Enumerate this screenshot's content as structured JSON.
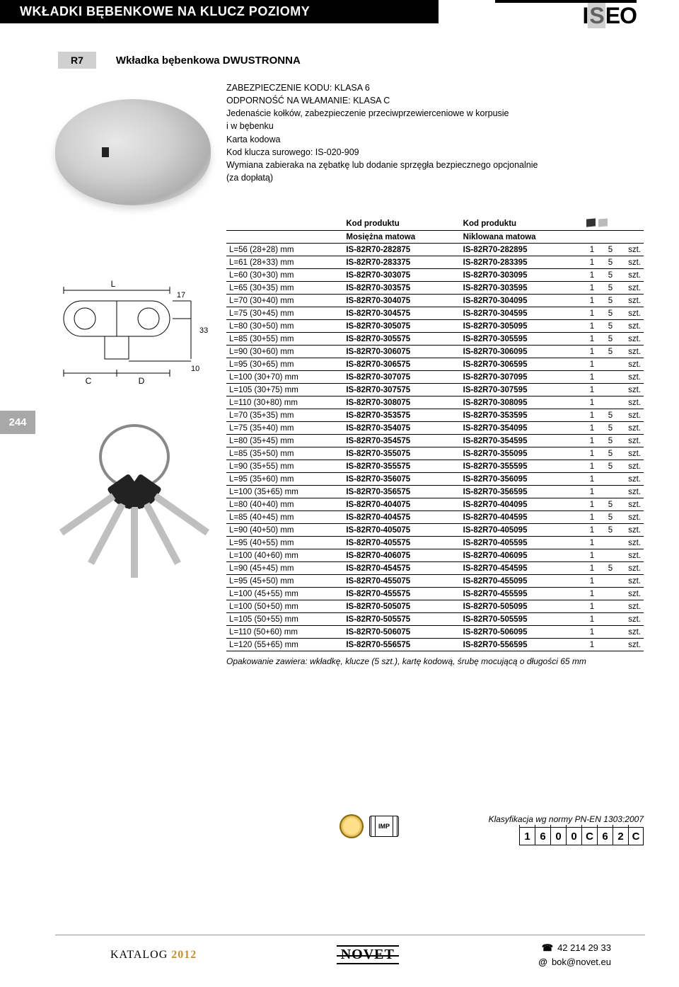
{
  "header": {
    "title": "WKŁADKI BĘBENKOWE NA KLUCZ POZIOMY",
    "brand_logo": "ISEO"
  },
  "subheader": {
    "badge": "R7",
    "title": "Wkładka bębenkowa DWUSTRONNA"
  },
  "description": [
    "ZABEZPIECZENIE KODU: KLASA 6",
    "ODPORNOŚĆ NA WŁAMANIE: KLASA C",
    "Jedenaście kołków, zabezpieczenie przeciwprzewierceniowe w korpusie",
    "i w bębenku",
    "Karta kodowa",
    "Kod klucza surowego: IS-020-909",
    "Wymiana zabieraka na zębatkę lub dodanie sprzęgła bezpiecznego opcjonalnie",
    "(za dopłatą)"
  ],
  "table": {
    "header1": {
      "col2": "Kod produktu",
      "col3": "Kod produktu"
    },
    "header2": {
      "col2": "Mosiężna matowa",
      "col3": "Niklowana matowa"
    },
    "unit": "szt.",
    "rows": [
      {
        "dim": "L=56 (28+28) mm",
        "c1": "IS-82R70-282875",
        "c2": "IS-82R70-282895",
        "q1": "1",
        "q2": "5"
      },
      {
        "dim": "L=61 (28+33) mm",
        "c1": "IS-82R70-283375",
        "c2": "IS-82R70-283395",
        "q1": "1",
        "q2": "5"
      },
      {
        "dim": "L=60 (30+30) mm",
        "c1": "IS-82R70-303075",
        "c2": "IS-82R70-303095",
        "q1": "1",
        "q2": "5"
      },
      {
        "dim": "L=65 (30+35) mm",
        "c1": "IS-82R70-303575",
        "c2": "IS-82R70-303595",
        "q1": "1",
        "q2": "5"
      },
      {
        "dim": "L=70 (30+40) mm",
        "c1": "IS-82R70-304075",
        "c2": "IS-82R70-304095",
        "q1": "1",
        "q2": "5"
      },
      {
        "dim": "L=75 (30+45) mm",
        "c1": "IS-82R70-304575",
        "c2": "IS-82R70-304595",
        "q1": "1",
        "q2": "5"
      },
      {
        "dim": "L=80 (30+50) mm",
        "c1": "IS-82R70-305075",
        "c2": "IS-82R70-305095",
        "q1": "1",
        "q2": "5"
      },
      {
        "dim": "L=85 (30+55) mm",
        "c1": "IS-82R70-305575",
        "c2": "IS-82R70-305595",
        "q1": "1",
        "q2": "5"
      },
      {
        "dim": "L=90 (30+60) mm",
        "c1": "IS-82R70-306075",
        "c2": "IS-82R70-306095",
        "q1": "1",
        "q2": "5"
      },
      {
        "dim": "L=95 (30+65) mm",
        "c1": "IS-82R70-306575",
        "c2": "IS-82R70-306595",
        "q1": "1",
        "q2": ""
      },
      {
        "dim": "L=100 (30+70) mm",
        "c1": "IS-82R70-307075",
        "c2": "IS-82R70-307095",
        "q1": "1",
        "q2": ""
      },
      {
        "dim": "L=105 (30+75) mm",
        "c1": "IS-82R70-307575",
        "c2": "IS-82R70-307595",
        "q1": "1",
        "q2": ""
      },
      {
        "dim": "L=110 (30+80) mm",
        "c1": "IS-82R70-308075",
        "c2": "IS-82R70-308095",
        "q1": "1",
        "q2": ""
      },
      {
        "dim": "L=70 (35+35) mm",
        "c1": "IS-82R70-353575",
        "c2": "IS-82R70-353595",
        "q1": "1",
        "q2": "5"
      },
      {
        "dim": "L=75 (35+40) mm",
        "c1": "IS-82R70-354075",
        "c2": "IS-82R70-354095",
        "q1": "1",
        "q2": "5"
      },
      {
        "dim": "L=80 (35+45) mm",
        "c1": "IS-82R70-354575",
        "c2": "IS-82R70-354595",
        "q1": "1",
        "q2": "5"
      },
      {
        "dim": "L=85 (35+50) mm",
        "c1": "IS-82R70-355075",
        "c2": "IS-82R70-355095",
        "q1": "1",
        "q2": "5"
      },
      {
        "dim": "L=90 (35+55) mm",
        "c1": "IS-82R70-355575",
        "c2": "IS-82R70-355595",
        "q1": "1",
        "q2": "5"
      },
      {
        "dim": "L=95 (35+60) mm",
        "c1": "IS-82R70-356075",
        "c2": "IS-82R70-356095",
        "q1": "1",
        "q2": ""
      },
      {
        "dim": "L=100 (35+65) mm",
        "c1": "IS-82R70-356575",
        "c2": "IS-82R70-356595",
        "q1": "1",
        "q2": ""
      },
      {
        "dim": "L=80 (40+40) mm",
        "c1": "IS-82R70-404075",
        "c2": "IS-82R70-404095",
        "q1": "1",
        "q2": "5"
      },
      {
        "dim": "L=85 (40+45) mm",
        "c1": "IS-82R70-404575",
        "c2": "IS-82R70-404595",
        "q1": "1",
        "q2": "5"
      },
      {
        "dim": "L=90 (40+50) mm",
        "c1": "IS-82R70-405075",
        "c2": "IS-82R70-405095",
        "q1": "1",
        "q2": "5"
      },
      {
        "dim": "L=95 (40+55) mm",
        "c1": "IS-82R70-405575",
        "c2": "IS-82R70-405595",
        "q1": "1",
        "q2": ""
      },
      {
        "dim": "L=100 (40+60) mm",
        "c1": "IS-82R70-406075",
        "c2": "IS-82R70-406095",
        "q1": "1",
        "q2": ""
      },
      {
        "dim": "L=90 (45+45) mm",
        "c1": "IS-82R70-454575",
        "c2": "IS-82R70-454595",
        "q1": "1",
        "q2": "5"
      },
      {
        "dim": "L=95 (45+50) mm",
        "c1": "IS-82R70-455075",
        "c2": "IS-82R70-455095",
        "q1": "1",
        "q2": ""
      },
      {
        "dim": "L=100 (45+55) mm",
        "c1": "IS-82R70-455575",
        "c2": "IS-82R70-455595",
        "q1": "1",
        "q2": ""
      },
      {
        "dim": "L=100 (50+50) mm",
        "c1": "IS-82R70-505075",
        "c2": "IS-82R70-505095",
        "q1": "1",
        "q2": ""
      },
      {
        "dim": "L=105 (50+55) mm",
        "c1": "IS-82R70-505575",
        "c2": "IS-82R70-505595",
        "q1": "1",
        "q2": ""
      },
      {
        "dim": "L=110 (50+60) mm",
        "c1": "IS-82R70-506075",
        "c2": "IS-82R70-506095",
        "q1": "1",
        "q2": ""
      },
      {
        "dim": "L=120 (55+65) mm",
        "c1": "IS-82R70-556575",
        "c2": "IS-82R70-556595",
        "q1": "1",
        "q2": ""
      }
    ],
    "note": "Opakowanie zawiera: wkładkę, klucze (5 szt.), kartę kodową, śrubę mocującą o długości 65 mm"
  },
  "tech_drawing": {
    "labels": {
      "L": "L",
      "C": "C",
      "D": "D",
      "d17": "17",
      "d10": "10",
      "d33": "33"
    }
  },
  "classification": {
    "label": "Klasyfikacja wg normy PN-EN 1303:2007",
    "cells": [
      "1",
      "6",
      "0",
      "0",
      "C",
      "6",
      "2",
      "C"
    ]
  },
  "cert": {
    "imp": "IMP"
  },
  "page_number": "244",
  "footer": {
    "catalog": "KATALOG",
    "year": "2012",
    "publisher": "NOVET",
    "phone": "42 214 29 33",
    "email": "bok@novet.eu"
  }
}
